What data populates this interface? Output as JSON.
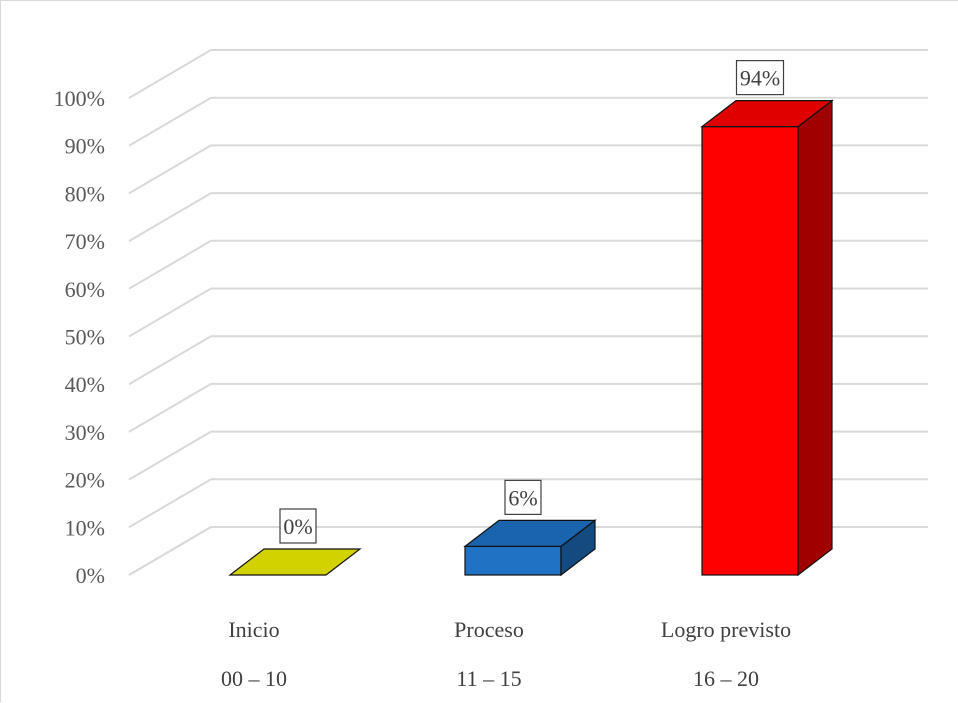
{
  "chart_data": {
    "type": "bar",
    "style": "3d-column",
    "categories": [
      {
        "label": "Inicio",
        "range": "00 – 10"
      },
      {
        "label": "Proceso",
        "range": "11 – 15"
      },
      {
        "label": "Logro previsto",
        "range": "16 – 20"
      }
    ],
    "values": [
      0,
      6,
      94
    ],
    "data_labels": [
      "0%",
      "6%",
      "94%"
    ],
    "colors": [
      {
        "front": "#c4c400",
        "top": "#d2d200",
        "side": "#9c9c00"
      },
      {
        "front": "#1f72c4",
        "top": "#1a63ad",
        "side": "#134a80"
      },
      {
        "front": "#ff0000",
        "top": "#e00000",
        "side": "#a00000"
      }
    ],
    "y_ticks": [
      "0%",
      "10%",
      "20%",
      "30%",
      "40%",
      "50%",
      "60%",
      "70%",
      "80%",
      "90%",
      "100%"
    ],
    "ylim": [
      0,
      100
    ],
    "grid": true,
    "legend": "none",
    "title": "",
    "xlabel": "",
    "ylabel": ""
  }
}
